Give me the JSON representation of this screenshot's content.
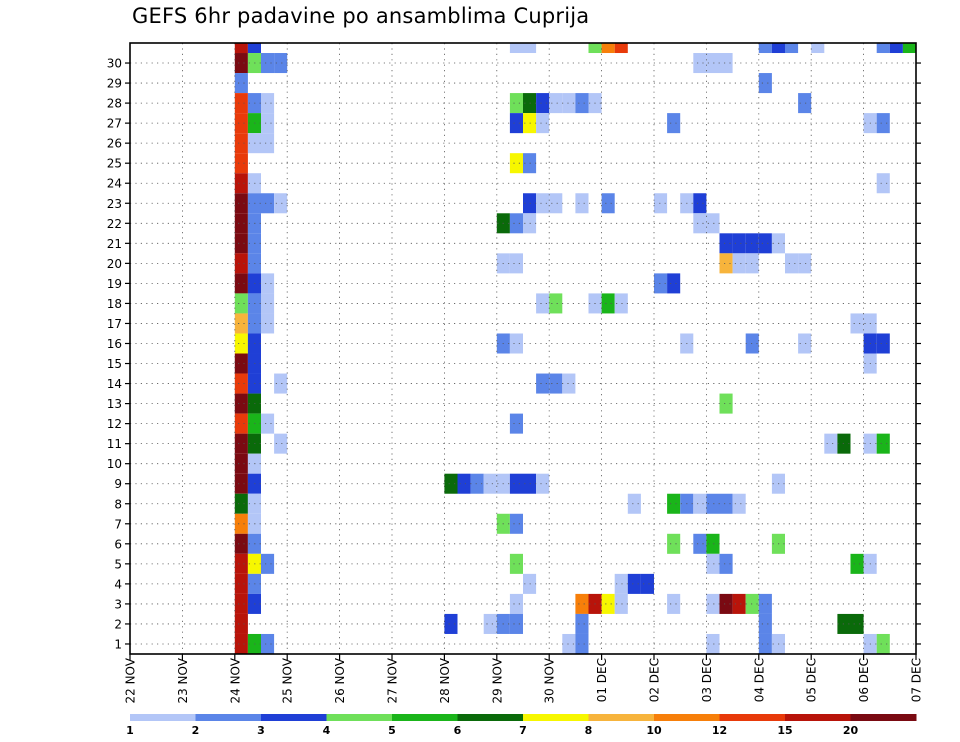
{
  "chart_data": {
    "type": "heatmap",
    "title": "GEFS 6hr padavine po ansamblima Cuprija",
    "xlabel": "",
    "ylabel": "",
    "y_ticks": [
      1,
      2,
      3,
      4,
      5,
      6,
      7,
      8,
      9,
      10,
      11,
      12,
      13,
      14,
      15,
      16,
      17,
      18,
      19,
      20,
      21,
      22,
      23,
      24,
      25,
      26,
      27,
      28,
      29,
      30
    ],
    "x_ticks": [
      "22 NOV",
      "23 NOV",
      "24 NOV",
      "25 NOV",
      "26 NOV",
      "27 NOV",
      "28 NOV",
      "29 NOV",
      "30 NOV",
      "01 DEC",
      "02 DEC",
      "03 DEC",
      "04 DEC",
      "05 DEC",
      "06 DEC",
      "07 DEC"
    ],
    "ylim": [
      0,
      30
    ],
    "grid": true,
    "value_unit": "6-hourly precipitation per ensemble member (color bin index)",
    "color_bins": [
      {
        "label": "1",
        "color": "#b3c6f7"
      },
      {
        "label": "2",
        "color": "#5b85e8"
      },
      {
        "label": "3",
        "color": "#1f3fd6"
      },
      {
        "label": "4",
        "color": "#6fe05a"
      },
      {
        "label": "5",
        "color": "#1ab51a"
      },
      {
        "label": "6",
        "color": "#0a6a0a"
      },
      {
        "label": "7",
        "color": "#f7f700"
      },
      {
        "label": "8",
        "color": "#f7b43c"
      },
      {
        "label": "10",
        "color": "#f77f0a"
      },
      {
        "label": "12",
        "color": "#e83a0a"
      },
      {
        "label": "15",
        "color": "#b8140a"
      },
      {
        "label": "20",
        "color": "#7a0a12"
      }
    ],
    "legend_labels": [
      "1",
      "2",
      "3",
      "4",
      "5",
      "6",
      "7",
      "8",
      "10",
      "12",
      "15",
      "20"
    ],
    "cells": [
      [
        30,
        8,
        10
      ],
      [
        30,
        9,
        2
      ],
      [
        30,
        29,
        0
      ],
      [
        30,
        30,
        0
      ],
      [
        30,
        35,
        3
      ],
      [
        30,
        36,
        8
      ],
      [
        30,
        37,
        9
      ],
      [
        30,
        48,
        1
      ],
      [
        30,
        49,
        2
      ],
      [
        30,
        50,
        1
      ],
      [
        30,
        52,
        0
      ],
      [
        30,
        57,
        1
      ],
      [
        30,
        58,
        2
      ],
      [
        30,
        59,
        4
      ],
      [
        29,
        8,
        11
      ],
      [
        29,
        9,
        3
      ],
      [
        29,
        10,
        1
      ],
      [
        29,
        11,
        1
      ],
      [
        29,
        43,
        0
      ],
      [
        29,
        44,
        0
      ],
      [
        29,
        45,
        0
      ],
      [
        28,
        8,
        1
      ],
      [
        28,
        48,
        1
      ],
      [
        27,
        8,
        9
      ],
      [
        27,
        9,
        1
      ],
      [
        27,
        10,
        0
      ],
      [
        27,
        29,
        3
      ],
      [
        27,
        30,
        5
      ],
      [
        27,
        31,
        2
      ],
      [
        27,
        32,
        0
      ],
      [
        27,
        33,
        0
      ],
      [
        27,
        34,
        1
      ],
      [
        27,
        35,
        0
      ],
      [
        27,
        51,
        1
      ],
      [
        26,
        8,
        9
      ],
      [
        26,
        9,
        4
      ],
      [
        26,
        10,
        0
      ],
      [
        26,
        29,
        2
      ],
      [
        26,
        30,
        6
      ],
      [
        26,
        31,
        0
      ],
      [
        26,
        41,
        1
      ],
      [
        26,
        56,
        0
      ],
      [
        26,
        57,
        1
      ],
      [
        25,
        8,
        9
      ],
      [
        25,
        9,
        0
      ],
      [
        25,
        10,
        0
      ],
      [
        24,
        8,
        9
      ],
      [
        24,
        29,
        6
      ],
      [
        24,
        30,
        1
      ],
      [
        23,
        8,
        10
      ],
      [
        23,
        9,
        0
      ],
      [
        23,
        57,
        0
      ],
      [
        22,
        8,
        11
      ],
      [
        22,
        9,
        1
      ],
      [
        22,
        10,
        1
      ],
      [
        22,
        11,
        0
      ],
      [
        22,
        30,
        2
      ],
      [
        22,
        31,
        0
      ],
      [
        22,
        32,
        0
      ],
      [
        22,
        34,
        0
      ],
      [
        22,
        36,
        1
      ],
      [
        22,
        40,
        0
      ],
      [
        22,
        42,
        0
      ],
      [
        22,
        43,
        2
      ],
      [
        21,
        8,
        11
      ],
      [
        21,
        9,
        1
      ],
      [
        21,
        28,
        5
      ],
      [
        21,
        29,
        1
      ],
      [
        21,
        30,
        0
      ],
      [
        21,
        43,
        0
      ],
      [
        21,
        44,
        0
      ],
      [
        20,
        8,
        11
      ],
      [
        20,
        9,
        1
      ],
      [
        20,
        45,
        2
      ],
      [
        20,
        46,
        2
      ],
      [
        20,
        47,
        2
      ],
      [
        20,
        48,
        2
      ],
      [
        20,
        49,
        0
      ],
      [
        19,
        8,
        10
      ],
      [
        19,
        9,
        1
      ],
      [
        19,
        28,
        0
      ],
      [
        19,
        29,
        0
      ],
      [
        19,
        45,
        7
      ],
      [
        19,
        46,
        0
      ],
      [
        19,
        47,
        0
      ],
      [
        19,
        50,
        0
      ],
      [
        19,
        51,
        0
      ],
      [
        18,
        8,
        11
      ],
      [
        18,
        9,
        2
      ],
      [
        18,
        10,
        0
      ],
      [
        18,
        40,
        1
      ],
      [
        18,
        41,
        2
      ],
      [
        17,
        8,
        3
      ],
      [
        17,
        9,
        1
      ],
      [
        17,
        10,
        0
      ],
      [
        17,
        31,
        0
      ],
      [
        17,
        32,
        3
      ],
      [
        17,
        35,
        0
      ],
      [
        17,
        36,
        4
      ],
      [
        17,
        37,
        0
      ],
      [
        16,
        8,
        7
      ],
      [
        16,
        9,
        1
      ],
      [
        16,
        10,
        0
      ],
      [
        16,
        55,
        0
      ],
      [
        16,
        56,
        0
      ],
      [
        15,
        8,
        6
      ],
      [
        15,
        9,
        2
      ],
      [
        15,
        28,
        1
      ],
      [
        15,
        29,
        0
      ],
      [
        15,
        42,
        0
      ],
      [
        15,
        47,
        1
      ],
      [
        15,
        51,
        0
      ],
      [
        15,
        56,
        2
      ],
      [
        15,
        57,
        2
      ],
      [
        14,
        8,
        11
      ],
      [
        14,
        9,
        2
      ],
      [
        14,
        56,
        0
      ],
      [
        13,
        8,
        9
      ],
      [
        13,
        9,
        2
      ],
      [
        13,
        11,
        0
      ],
      [
        13,
        31,
        1
      ],
      [
        13,
        32,
        1
      ],
      [
        13,
        33,
        0
      ],
      [
        12,
        8,
        11
      ],
      [
        12,
        9,
        5
      ],
      [
        12,
        45,
        3
      ],
      [
        11,
        8,
        9
      ],
      [
        11,
        9,
        4
      ],
      [
        11,
        10,
        0
      ],
      [
        11,
        29,
        1
      ],
      [
        10,
        8,
        11
      ],
      [
        10,
        9,
        5
      ],
      [
        10,
        11,
        0
      ],
      [
        10,
        53,
        0
      ],
      [
        10,
        54,
        5
      ],
      [
        10,
        56,
        0
      ],
      [
        10,
        57,
        4
      ],
      [
        9,
        8,
        11
      ],
      [
        9,
        9,
        0
      ],
      [
        8,
        8,
        11
      ],
      [
        8,
        9,
        2
      ],
      [
        8,
        24,
        5
      ],
      [
        8,
        25,
        2
      ],
      [
        8,
        26,
        1
      ],
      [
        8,
        27,
        0
      ],
      [
        8,
        28,
        0
      ],
      [
        8,
        29,
        2
      ],
      [
        8,
        30,
        2
      ],
      [
        8,
        31,
        0
      ],
      [
        8,
        49,
        0
      ],
      [
        7,
        8,
        5
      ],
      [
        7,
        9,
        0
      ],
      [
        7,
        38,
        0
      ],
      [
        7,
        41,
        4
      ],
      [
        7,
        42,
        1
      ],
      [
        7,
        43,
        0
      ],
      [
        7,
        44,
        1
      ],
      [
        7,
        45,
        1
      ],
      [
        7,
        46,
        0
      ],
      [
        6,
        8,
        8
      ],
      [
        6,
        9,
        0
      ],
      [
        6,
        28,
        3
      ],
      [
        6,
        29,
        1
      ],
      [
        5,
        8,
        11
      ],
      [
        5,
        9,
        1
      ],
      [
        5,
        41,
        3
      ],
      [
        5,
        43,
        1
      ],
      [
        5,
        44,
        4
      ],
      [
        5,
        49,
        3
      ],
      [
        4,
        8,
        10
      ],
      [
        4,
        9,
        6
      ],
      [
        4,
        10,
        1
      ],
      [
        4,
        29,
        3
      ],
      [
        4,
        44,
        0
      ],
      [
        4,
        45,
        1
      ],
      [
        4,
        55,
        4
      ],
      [
        4,
        56,
        0
      ],
      [
        3,
        8,
        10
      ],
      [
        3,
        9,
        1
      ],
      [
        3,
        30,
        0
      ],
      [
        3,
        37,
        0
      ],
      [
        3,
        38,
        2
      ],
      [
        3,
        39,
        2
      ],
      [
        2,
        8,
        10
      ],
      [
        2,
        9,
        2
      ],
      [
        2,
        29,
        0
      ],
      [
        2,
        34,
        8
      ],
      [
        2,
        35,
        10
      ],
      [
        2,
        36,
        6
      ],
      [
        2,
        37,
        0
      ],
      [
        2,
        41,
        0
      ],
      [
        2,
        44,
        0
      ],
      [
        2,
        45,
        11
      ],
      [
        2,
        46,
        10
      ],
      [
        2,
        47,
        3
      ],
      [
        2,
        48,
        1
      ],
      [
        1,
        8,
        10
      ],
      [
        1,
        24,
        2
      ],
      [
        1,
        27,
        0
      ],
      [
        1,
        28,
        1
      ],
      [
        1,
        29,
        1
      ],
      [
        1,
        34,
        1
      ],
      [
        1,
        48,
        1
      ],
      [
        1,
        54,
        5
      ],
      [
        1,
        55,
        5
      ],
      [
        0,
        8,
        10
      ],
      [
        0,
        9,
        4
      ],
      [
        0,
        10,
        1
      ],
      [
        0,
        33,
        0
      ],
      [
        0,
        34,
        1
      ],
      [
        0,
        44,
        0
      ],
      [
        0,
        48,
        1
      ],
      [
        0,
        49,
        0
      ],
      [
        0,
        56,
        0
      ],
      [
        0,
        57,
        3
      ]
    ]
  }
}
